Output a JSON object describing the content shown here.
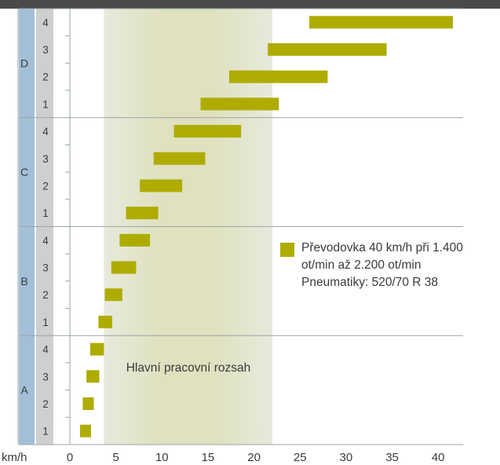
{
  "colors": {
    "bar": "#aeac00",
    "top_bar": "#4a4a4a",
    "range_col": "#a3bfd8",
    "gear_col": "#cfcfcf",
    "band_light": "#e7eadc",
    "band_dark": "#dfe1bf",
    "grid": "#9aa6a8",
    "text": "#3a3a3a"
  },
  "chart_data": {
    "type": "bar",
    "orientation": "horizontal-floating",
    "x_unit_label": "km/h",
    "xlim": [
      0,
      42
    ],
    "x_ticks": [
      0,
      5,
      10,
      15,
      20,
      25,
      30,
      35,
      40
    ],
    "working_range": {
      "label": "Hlavní pracovní rozsah",
      "from": 3.7,
      "to": 22.0
    },
    "groups": [
      {
        "name": "A",
        "gears": [
          {
            "gear": "1",
            "from": 1.1,
            "to": 2.3
          },
          {
            "gear": "2",
            "from": 1.4,
            "to": 2.6
          },
          {
            "gear": "3",
            "from": 1.8,
            "to": 3.2
          },
          {
            "gear": "4",
            "from": 2.2,
            "to": 3.7
          }
        ]
      },
      {
        "name": "B",
        "gears": [
          {
            "gear": "1",
            "from": 3.1,
            "to": 4.6
          },
          {
            "gear": "2",
            "from": 3.8,
            "to": 5.7
          },
          {
            "gear": "3",
            "from": 4.5,
            "to": 7.2
          },
          {
            "gear": "4",
            "from": 5.4,
            "to": 8.7
          }
        ]
      },
      {
        "name": "C",
        "gears": [
          {
            "gear": "1",
            "from": 6.1,
            "to": 9.6
          },
          {
            "gear": "2",
            "from": 7.6,
            "to": 12.2
          },
          {
            "gear": "3",
            "from": 9.1,
            "to": 14.7
          },
          {
            "gear": "4",
            "from": 11.3,
            "to": 18.6
          }
        ]
      },
      {
        "name": "D",
        "gears": [
          {
            "gear": "1",
            "from": 14.2,
            "to": 22.7
          },
          {
            "gear": "2",
            "from": 17.3,
            "to": 28.0
          },
          {
            "gear": "3",
            "from": 21.5,
            "to": 34.4
          },
          {
            "gear": "4",
            "from": 26.0,
            "to": 41.6
          }
        ]
      }
    ],
    "legend": {
      "lines": [
        "Převodovka 40 km/h při 1.400",
        "ot/min až 2.200 ot/min",
        "Pneumatiky: 520/70 R 38"
      ]
    }
  }
}
